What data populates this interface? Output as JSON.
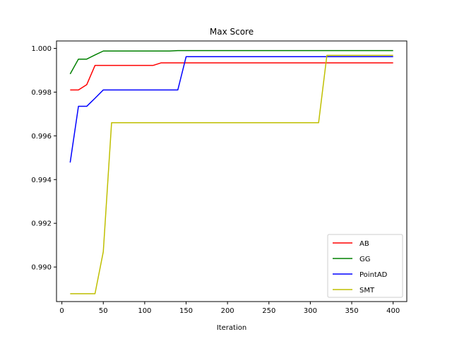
{
  "chart_data": {
    "type": "line",
    "title": "Max Score",
    "xlabel": "Iteration",
    "ylabel": "",
    "xlim": [
      -6.5,
      416.5
    ],
    "ylim": [
      0.98842,
      1.00034
    ],
    "xticks": [
      "0",
      "50",
      "100",
      "150",
      "200",
      "250",
      "300",
      "350",
      "400"
    ],
    "yticks": [
      "0.990",
      "0.992",
      "0.994",
      "0.996",
      "0.998",
      "1.000"
    ],
    "xtick_values": [
      0,
      50,
      100,
      150,
      200,
      250,
      300,
      350,
      400
    ],
    "ytick_values": [
      0.99,
      0.992,
      0.994,
      0.996,
      0.998,
      1.0
    ],
    "grid": false,
    "legend_position": "lower-right",
    "series": [
      {
        "name": "AB",
        "color": "#ff0000",
        "x": [
          10,
          20,
          30,
          40,
          50,
          60,
          70,
          80,
          90,
          100,
          110,
          120,
          130,
          140,
          150,
          200,
          250,
          300,
          350,
          400
        ],
        "y": [
          0.9981,
          0.9981,
          0.99834,
          0.99922,
          0.99922,
          0.99922,
          0.99922,
          0.99922,
          0.99922,
          0.99922,
          0.99922,
          0.99934,
          0.99934,
          0.99934,
          0.99934,
          0.99934,
          0.99934,
          0.99934,
          0.99934,
          0.99934
        ]
      },
      {
        "name": "GG",
        "color": "#008000",
        "x": [
          10,
          20,
          30,
          40,
          50,
          60,
          100,
          130,
          140,
          150,
          200,
          250,
          300,
          350,
          400
        ],
        "y": [
          0.99883,
          0.99951,
          0.99951,
          0.9997,
          0.99988,
          0.99988,
          0.99988,
          0.99988,
          0.9999,
          0.9999,
          0.9999,
          0.9999,
          0.9999,
          0.9999,
          0.9999
        ]
      },
      {
        "name": "PointAD",
        "color": "#0000ff",
        "x": [
          10,
          20,
          30,
          40,
          50,
          60,
          100,
          140,
          150,
          200,
          250,
          300,
          350,
          400
        ],
        "y": [
          0.99478,
          0.99735,
          0.99735,
          0.99772,
          0.9981,
          0.9981,
          0.9981,
          0.9981,
          0.99962,
          0.99962,
          0.99962,
          0.99962,
          0.99962,
          0.99962
        ]
      },
      {
        "name": "SMT",
        "color": "#bfbf00",
        "x": [
          10,
          20,
          30,
          40,
          50,
          60,
          100,
          200,
          300,
          310,
          320,
          350,
          400
        ],
        "y": [
          0.98878,
          0.98878,
          0.98878,
          0.98878,
          0.9907,
          0.9966,
          0.9966,
          0.9966,
          0.9966,
          0.9966,
          0.99968,
          0.99968,
          0.99968
        ]
      }
    ]
  }
}
